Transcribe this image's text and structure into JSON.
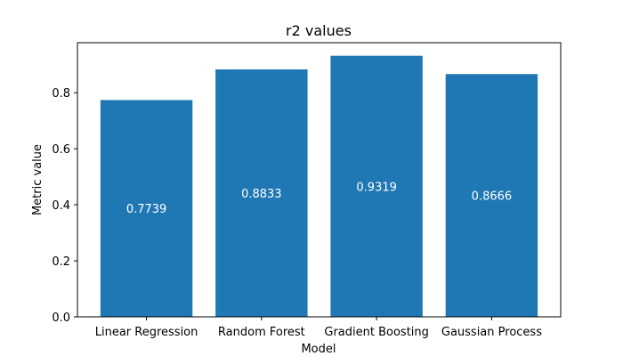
{
  "chart_data": {
    "type": "bar",
    "title": "r2 values",
    "xlabel": "Model",
    "ylabel": "Metric value",
    "categories": [
      "Linear Regression",
      "Random Forest",
      "Gradient Boosting",
      "Gaussian Process"
    ],
    "values": [
      0.7739,
      0.8833,
      0.9319,
      0.8666
    ],
    "labels": [
      "0.7739",
      "0.8833",
      "0.9319",
      "0.8666"
    ],
    "ylim": [
      0,
      0.9785
    ],
    "yticks": [
      0.0,
      0.2,
      0.4,
      0.6,
      0.8
    ],
    "ytick_labels": [
      "0.0",
      "0.2",
      "0.4",
      "0.6",
      "0.8"
    ],
    "bar_color": "#1f77b4",
    "label_color": "#ffffff",
    "grid": false,
    "legend": "none"
  }
}
